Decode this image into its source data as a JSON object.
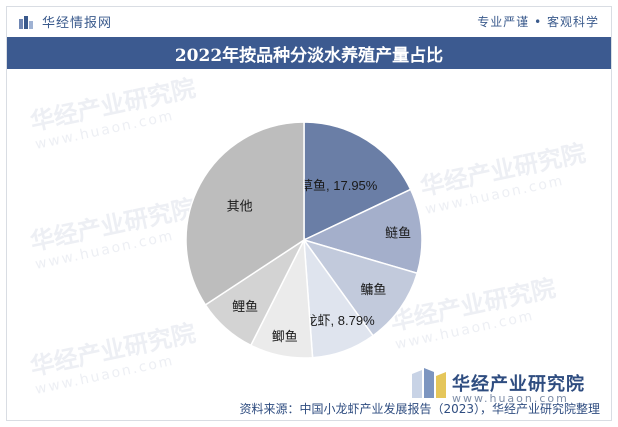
{
  "header": {
    "brand": "华经情报网",
    "slogan": "专业严谨 • 客观科学"
  },
  "title": "2022年按品种分淡水养殖产量占比",
  "watermark": {
    "text": "华经产业研究院",
    "domain": "www.huaon.com"
  },
  "footer": {
    "brand": "华经产业研究院",
    "domain": "www.huaon.com",
    "source": "资料来源：中国小龙虾产业发展报告（2023），华经产业研究院整理"
  },
  "colors": {
    "title_bar": "#3c5a90",
    "brand": "#3a5a8c",
    "slice_草鱼": "#6a7ea6",
    "slice_鲢鱼": "#a4afcb",
    "slice_鳙鱼": "#c2cadc",
    "slice_小龙虾": "#dfe4ee",
    "slice_鲫鱼": "#ebebeb",
    "slice_鲤鱼": "#d3d3d3",
    "slice_其他": "#bdbdbd"
  },
  "chart_data": {
    "type": "pie",
    "title": "2022年按品种分淡水养殖产量占比",
    "categories": [
      "草鱼",
      "鲢鱼",
      "鳙鱼",
      "小龙虾",
      "鲫鱼",
      "鲤鱼",
      "其他"
    ],
    "values": [
      17.95,
      11.6,
      10.5,
      8.79,
      8.6,
      8.3,
      34.26
    ],
    "labels": [
      "草鱼, 17.95%",
      "鲢鱼",
      "鳙鱼",
      "小龙虾, 8.79%",
      "鲫鱼",
      "鲤鱼",
      "其他"
    ],
    "legend": "none"
  }
}
